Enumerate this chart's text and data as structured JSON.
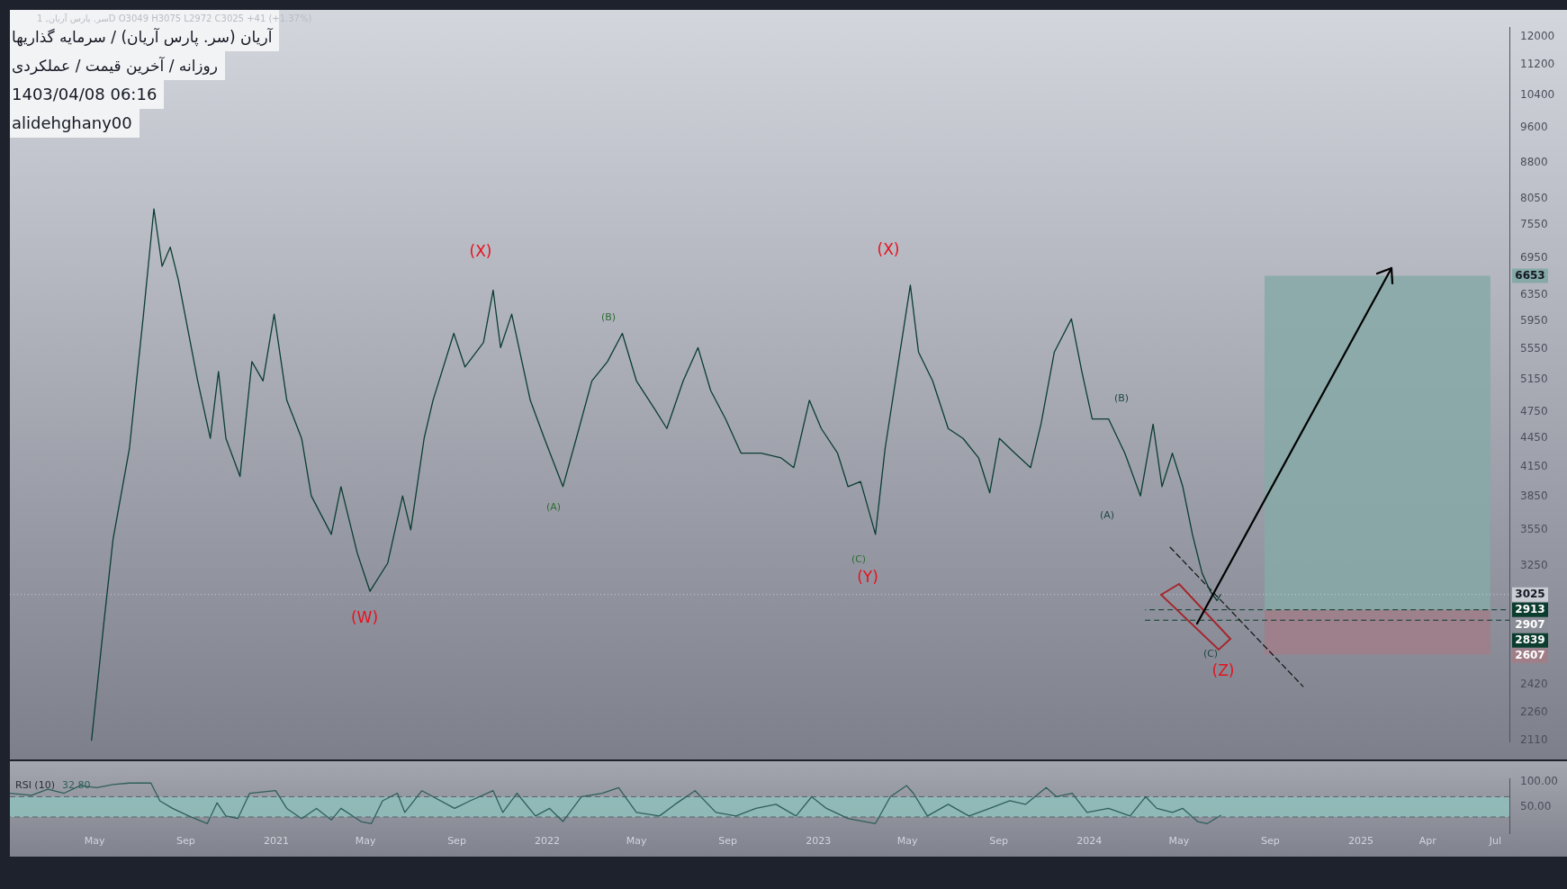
{
  "chart_data": [
    {
      "type": "line",
      "title": "آریان (سر. پارس آریان) / سرمایه گذاریها",
      "subtitle": "روزانه / آخرین قیمت / عملکردی",
      "annotations": [
        "1403/04/08 06:16",
        "alidehghany00",
        "سر. پارس آریان, 1D  O3049  H3075  L2972  C3025  +41 (+1.37%)",
        "(X)",
        "(B)",
        "(A)",
        "(W)",
        "(X)",
        "(C)",
        "(Y)",
        "(B)",
        "(A)",
        "(C)",
        "(Z)",
        "2907"
      ],
      "xlim": [
        "2020-01-08",
        "2025-07-20"
      ],
      "ylim": [
        2100,
        12300
      ],
      "yticks": [
        2110,
        2260,
        2420,
        3250,
        3550,
        3850,
        4150,
        4450,
        4750,
        5150,
        5550,
        5950,
        6350,
        6950,
        7550,
        8050,
        8800,
        9600,
        10400,
        11200,
        12000
      ],
      "log": true,
      "tick_labels": "y",
      "marker": "none",
      "series": [
        {
          "color": "#0b3d33",
          "x": [
            "2020-04-27",
            "2020-05-14",
            "2020-05-26",
            "2020-06-17",
            "2020-07-06",
            "2020-07-20",
            "2020-07-31",
            "2020-08-11",
            "2020-08-22",
            "2020-09-17",
            "2020-10-04",
            "2020-10-15",
            "2020-10-25",
            "2020-11-13",
            "2020-11-29",
            "2020-12-14",
            "2020-12-29",
            "2021-01-15",
            "2021-02-04",
            "2021-02-17",
            "2021-03-16",
            "2021-03-29",
            "2021-04-20",
            "2021-05-07",
            "2021-05-31",
            "2021-06-20",
            "2021-07-01",
            "2021-07-19",
            "2021-07-31",
            "2021-08-28",
            "2021-09-12",
            "2021-10-07",
            "2021-10-20",
            "2021-10-30",
            "2021-11-14",
            "2021-12-09",
            "2021-12-28",
            "2022-01-22",
            "2022-02-09",
            "2022-03-02",
            "2022-03-23",
            "2022-04-12",
            "2022-05-01",
            "2022-05-26",
            "2022-06-11",
            "2022-07-03",
            "2022-07-23",
            "2022-08-09",
            "2022-08-29",
            "2022-09-19",
            "2022-10-16",
            "2022-11-12",
            "2022-11-29",
            "2022-12-20",
            "2023-01-05",
            "2023-01-27",
            "2023-02-10",
            "2023-02-27",
            "2023-03-19",
            "2023-04-01",
            "2023-04-15",
            "2023-04-25",
            "2023-05-05",
            "2023-05-16",
            "2023-06-04",
            "2023-06-25",
            "2023-07-15",
            "2023-08-05",
            "2023-08-20",
            "2023-09-02",
            "2023-09-23",
            "2023-10-14",
            "2023-10-28",
            "2023-11-15",
            "2023-12-08",
            "2023-12-22",
            "2024-01-05",
            "2024-01-27",
            "2024-02-18",
            "2024-03-10",
            "2024-03-27",
            "2024-04-08",
            "2024-04-22",
            "2024-05-06",
            "2024-05-19",
            "2024-06-01",
            "2024-06-12",
            "2024-06-21",
            "2024-06-26"
          ],
          "values": [
            2110,
            2840,
            3470,
            4340,
            6050,
            7850,
            6810,
            7140,
            6580,
            5130,
            4450,
            5250,
            4450,
            4050,
            5380,
            5130,
            6050,
            4890,
            4450,
            3860,
            3510,
            3950,
            3350,
            3050,
            3270,
            3860,
            3550,
            4450,
            4890,
            5770,
            5310,
            5640,
            6420,
            5570,
            6050,
            4890,
            4450,
            3950,
            4450,
            5130,
            5380,
            5770,
            5130,
            4780,
            4560,
            5130,
            5570,
            5010,
            4670,
            4290,
            4290,
            4240,
            4140,
            4890,
            4560,
            4290,
            3950,
            4000,
            3510,
            4340,
            5130,
            5770,
            6500,
            5510,
            5130,
            4560,
            4450,
            4240,
            3890,
            4450,
            4290,
            4140,
            4610,
            5510,
            5980,
            5250,
            4670,
            4670,
            4290,
            3860,
            4610,
            3950,
            4290,
            3950,
            3510,
            3190,
            3050,
            2980,
            3025
          ]
        },
        {
          "type": "line",
          "color": "#1a1a1a",
          "line_style": "dashed",
          "x": [
            "2024-04-19",
            "2024-10-15"
          ],
          "values": [
            3400,
            2410
          ]
        }
      ],
      "ref_lines": [
        {
          "axis": "y",
          "value": 3025,
          "label": "3025",
          "color": "#c9ccd3",
          "line_style": "dotted"
        },
        {
          "axis": "y",
          "value": 2913,
          "label": "2913",
          "color": "#0b3d2e",
          "line_style": "dashed"
        },
        {
          "axis": "y",
          "value": 2839,
          "label": "2839",
          "color": "#0b3d2e",
          "line_style": "dashed"
        }
      ],
      "bands": [
        {
          "axis": "y",
          "from": 2913,
          "to": 6653,
          "label": "6653",
          "color": "#86a9a7"
        },
        {
          "axis": "y",
          "from": 2913,
          "to": 2607,
          "label": "2607",
          "color": "#a07e88"
        }
      ]
    },
    {
      "type": "line",
      "title": "RSI (10)",
      "annotations": [
        "32.80"
      ],
      "xlim": [
        "2020-01-08",
        "2025-07-20"
      ],
      "xticks": [
        {
          "value": "2020-05-01",
          "label": "May"
        },
        {
          "value": "2020-09-01",
          "label": "Sep"
        },
        {
          "value": "2021-01-01",
          "label": "2021"
        },
        {
          "value": "2021-05-01",
          "label": "May"
        },
        {
          "value": "2021-09-01",
          "label": "Sep"
        },
        {
          "value": "2022-01-01",
          "label": "2022"
        },
        {
          "value": "2022-05-01",
          "label": "May"
        },
        {
          "value": "2022-09-01",
          "label": "Sep"
        },
        {
          "value": "2023-01-01",
          "label": "2023"
        },
        {
          "value": "2023-05-01",
          "label": "May"
        },
        {
          "value": "2023-09-01",
          "label": "Sep"
        },
        {
          "value": "2024-01-01",
          "label": "2024"
        },
        {
          "value": "2024-05-01",
          "label": "May"
        },
        {
          "value": "2024-09-01",
          "label": "Sep"
        },
        {
          "value": "2025-01-01",
          "label": "2025"
        },
        {
          "value": "2025-04-01",
          "label": "Apr"
        },
        {
          "value": "2025-07-01",
          "label": "Jul"
        }
      ],
      "ylim": [
        -2,
        106
      ],
      "yticks": [
        {
          "value": 100,
          "label": "100.00"
        },
        {
          "value": 50,
          "label": "50.00"
        }
      ],
      "marker": "none",
      "series": [
        {
          "color": "#2f5f5a",
          "x": [
            "2020-01-08",
            "2020-02-06",
            "2020-02-28",
            "2020-03-21",
            "2020-04-12",
            "2020-05-04",
            "2020-05-26",
            "2020-06-17",
            "2020-07-16",
            "2020-07-28",
            "2020-08-14",
            "2020-09-05",
            "2020-09-30",
            "2020-10-13",
            "2020-10-25",
            "2020-11-10",
            "2020-11-26",
            "2020-12-31",
            "2021-01-15",
            "2021-02-04",
            "2021-02-24",
            "2021-03-16",
            "2021-03-29",
            "2021-04-25",
            "2021-05-09",
            "2021-05-24",
            "2021-06-13",
            "2021-06-23",
            "2021-07-16",
            "2021-08-29",
            "2021-09-19",
            "2021-10-20",
            "2021-11-02",
            "2021-11-21",
            "2021-12-16",
            "2022-01-04",
            "2022-01-22",
            "2022-02-16",
            "2022-03-16",
            "2022-04-07",
            "2022-05-01",
            "2022-06-01",
            "2022-06-22",
            "2022-07-19",
            "2022-08-16",
            "2022-09-12",
            "2022-10-09",
            "2022-11-05",
            "2022-12-02",
            "2022-12-23",
            "2023-01-12",
            "2023-02-10",
            "2023-03-19",
            "2023-04-08",
            "2023-04-30",
            "2023-05-09",
            "2023-05-28",
            "2023-06-25",
            "2023-07-23",
            "2023-08-20",
            "2023-09-16",
            "2023-10-07",
            "2023-11-04",
            "2023-11-18",
            "2023-12-09",
            "2023-12-29",
            "2024-01-27",
            "2024-02-25",
            "2024-03-17",
            "2024-04-01",
            "2024-04-22",
            "2024-05-06",
            "2024-05-26",
            "2024-06-08",
            "2024-06-26"
          ],
          "values": [
            77,
            73,
            85,
            77,
            92,
            88,
            94,
            97,
            97,
            62,
            47,
            32,
            17,
            58,
            32,
            27,
            77,
            82,
            47,
            27,
            47,
            24,
            47,
            21,
            17,
            62,
            77,
            39,
            82,
            47,
            62,
            82,
            39,
            77,
            32,
            47,
            21,
            70,
            77,
            88,
            39,
            32,
            55,
            82,
            39,
            32,
            47,
            55,
            32,
            70,
            47,
            27,
            17,
            70,
            92,
            77,
            32,
            55,
            32,
            47,
            62,
            55,
            88,
            70,
            77,
            39,
            47,
            32,
            70,
            47,
            39,
            47,
            21,
            17,
            33
          ]
        }
      ],
      "ref_lines": [
        {
          "axis": "y",
          "value": 70,
          "color": "#5d606b",
          "line_style": "dashed"
        },
        {
          "axis": "y",
          "value": 30,
          "color": "#5d606b",
          "line_style": "dashed"
        }
      ],
      "bands": [
        {
          "axis": "y",
          "from": 30,
          "to": 70,
          "color": "#8fbfbb"
        }
      ]
    }
  ]
}
